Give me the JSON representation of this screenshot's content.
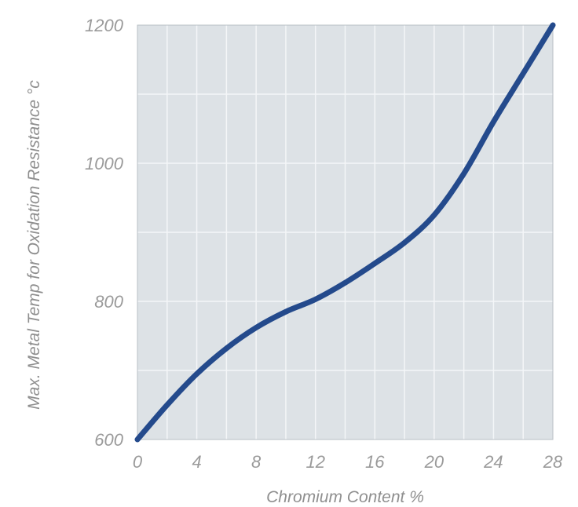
{
  "chart_data": {
    "type": "line",
    "xlabel": "Chromium Content %",
    "ylabel": "Max. Metal Temp for Oxidation Resistance °c",
    "xlim": [
      0,
      28
    ],
    "ylim": [
      600,
      1200
    ],
    "x_ticks": [
      0,
      4,
      8,
      12,
      16,
      20,
      24,
      28
    ],
    "y_ticks": [
      600,
      800,
      1000,
      1200
    ],
    "x_tick_labels": [
      "0",
      "4",
      "8",
      "12",
      "16",
      "20",
      "24",
      "28"
    ],
    "y_tick_labels": [
      "600",
      "800",
      "1000",
      "1200"
    ],
    "grid": true,
    "series": [
      {
        "x": [
          0,
          2,
          4,
          6,
          8,
          10,
          12,
          14,
          16,
          18,
          20,
          22,
          24,
          26,
          28
        ],
        "y": [
          600,
          650,
          695,
          732,
          762,
          785,
          803,
          827,
          855,
          885,
          925,
          985,
          1060,
          1130,
          1200
        ]
      }
    ]
  },
  "colors": {
    "plot_background": "#dde2e6",
    "grid": "#f4f6f8",
    "line": "#244a8c",
    "tick_text": "#9a9a9a",
    "axis_title_text": "#8f8f8f"
  }
}
